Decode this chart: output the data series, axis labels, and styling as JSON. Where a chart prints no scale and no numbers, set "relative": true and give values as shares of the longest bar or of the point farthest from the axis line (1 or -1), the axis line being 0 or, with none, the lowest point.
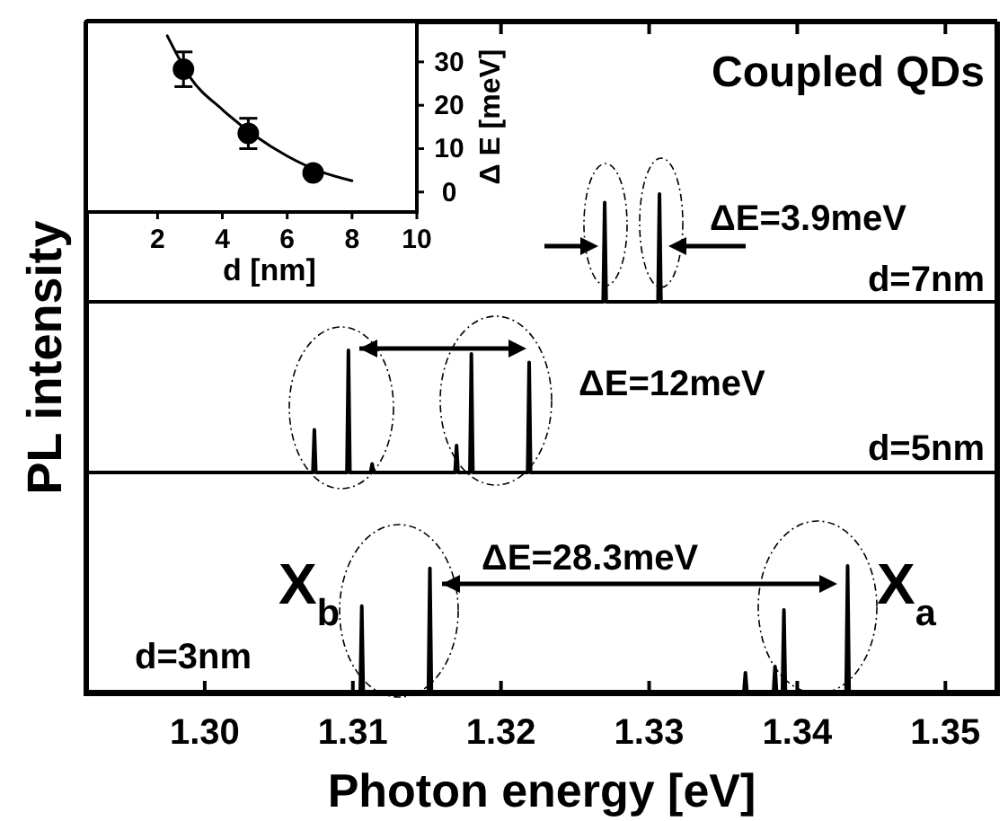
{
  "chart_data": [
    {
      "type": "line",
      "relative": true,
      "xlim": [
        1.292,
        1.3535
      ],
      "xticks": [
        1.32,
        1.33,
        1.34,
        1.35
      ],
      "tick_labels": false,
      "annotations": [
        "Coupled QDs",
        "ΔE=3.9meV",
        "d=7nm"
      ],
      "series": [
        {
          "color": "#000000",
          "x": [
            1.292,
            1.3269,
            1.327,
            1.3271,
            1.3306,
            1.3307,
            1.3308,
            1.3535
          ],
          "values": [
            0,
            0,
            0.92,
            0,
            0,
            1,
            0,
            0
          ]
        }
      ]
    },
    {
      "type": "line",
      "relative": true,
      "xlim": [
        1.292,
        1.3535
      ],
      "tick_labels": false,
      "ylabel": "PL intensity",
      "annotations": [
        "ΔE=12meV",
        "d=5nm"
      ],
      "series": [
        {
          "color": "#000000",
          "x": [
            1.292,
            1.3073,
            1.3074,
            1.3075,
            1.3096,
            1.3097,
            1.3098,
            1.3112,
            1.3113,
            1.3114,
            1.3169,
            1.317,
            1.3171,
            1.3179,
            1.318,
            1.3181,
            1.3218,
            1.3219,
            1.322,
            1.3535
          ],
          "values": [
            0,
            0,
            0.35,
            0,
            0,
            1,
            0,
            0,
            0.07,
            0,
            0,
            0.22,
            0,
            0,
            0.97,
            0,
            0,
            0.9,
            0,
            0
          ]
        }
      ]
    },
    {
      "type": "line",
      "relative": true,
      "xlim": [
        1.292,
        1.3535
      ],
      "xlabel": "Photon energy [eV]",
      "xticks": [
        {
          "value": 1.3,
          "label": "1.30"
        },
        1.31,
        1.32,
        1.33,
        1.34,
        1.35
      ],
      "annotations": [
        "X$_{b}$",
        "ΔE=28.3meV",
        "X$_{a}$",
        "d=3nm"
      ],
      "series": [
        {
          "color": "#000000",
          "x": [
            1.292,
            1.3105,
            1.3106,
            1.3107,
            1.3151,
            1.3152,
            1.3153,
            1.3364,
            1.3365,
            1.3366,
            1.3384,
            1.3385,
            1.3386,
            1.339,
            1.3391,
            1.3392,
            1.3433,
            1.3434,
            1.3435,
            1.3535
          ],
          "values": [
            0,
            0,
            0.68,
            0,
            0,
            0.98,
            0,
            0,
            0.15,
            0,
            0,
            0.2,
            0,
            0,
            0.65,
            0,
            0,
            1,
            0,
            0
          ]
        }
      ]
    },
    {
      "type": "scatter",
      "xlim": [
        -0.2,
        10
      ],
      "ylim": [
        -4.6,
        39.3
      ],
      "xticks": [
        2,
        4,
        6,
        8,
        10
      ],
      "yticks": [
        0,
        10,
        20,
        30
      ],
      "xlabel": "d [nm]",
      "ylabel": "Δ E [meV]",
      "series": [
        {
          "type": "scatter",
          "marker": "circle",
          "color": "#000000",
          "x": [
            2.8,
            4.8,
            6.8
          ],
          "values": [
            28.3,
            13.5,
            4.4
          ],
          "errors": [
            4,
            3.5,
            null
          ]
        },
        {
          "type": "line",
          "marker": "none",
          "color": "#000000",
          "x": [
            2.3,
            3,
            4,
            5,
            6,
            7,
            8
          ],
          "values": [
            36,
            26.5,
            19,
            13,
            8.3,
            4.8,
            2.6
          ]
        }
      ]
    }
  ]
}
